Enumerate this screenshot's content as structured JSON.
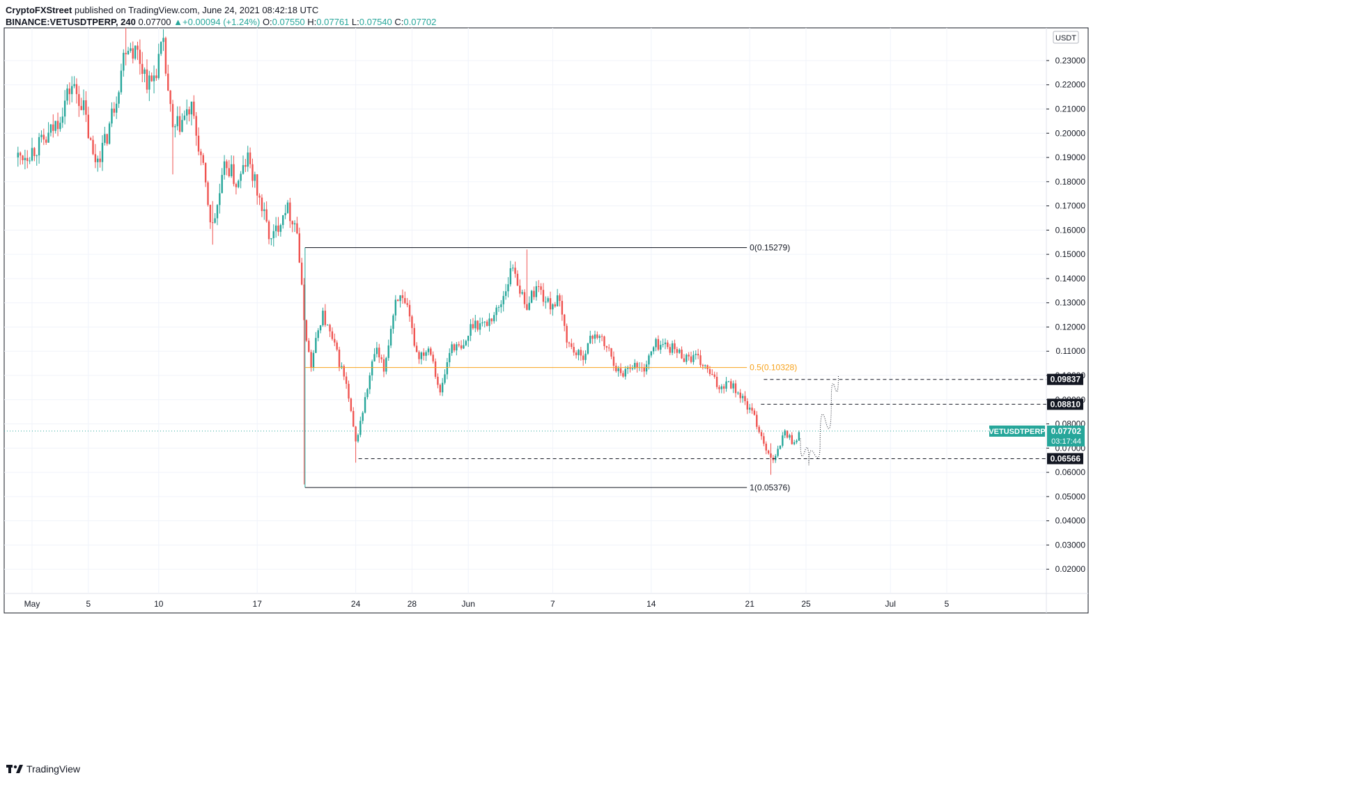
{
  "header": {
    "publisher": "CryptoFXStreet",
    "published_text": "published on TradingView.com, June 24, 2021 08:42:18 UTC",
    "symbol": "BINANCE:VETUSDTPERP, 240",
    "last": "0.07700",
    "arrow": "▲",
    "change": "+0.00094 (+1.24%)",
    "o_label": "O:",
    "o": "0.07550",
    "h_label": "H:",
    "h": "0.07761",
    "l_label": "L:",
    "l": "0.07540",
    "c_label": "C:",
    "c": "0.07702"
  },
  "footer": {
    "brand": "TradingView"
  },
  "colors": {
    "up": "#26a69a",
    "down": "#ef5350",
    "fib_mid": "#f7a21b",
    "grid": "#f0f3fa",
    "axis": "#131722"
  },
  "chart_data": {
    "type": "candlestick",
    "currency": "USDT",
    "ylim": [
      0.01,
      0.2435
    ],
    "y_ticks": [
      "0.23000",
      "0.22000",
      "0.21000",
      "0.20000",
      "0.19000",
      "0.18000",
      "0.17000",
      "0.16000",
      "0.15000",
      "0.14000",
      "0.13000",
      "0.12000",
      "0.11000",
      "0.10000",
      "0.09000",
      "0.08000",
      "0.07000",
      "0.06000",
      "0.05000",
      "0.04000",
      "0.03000",
      "0.02000"
    ],
    "x_ticks": [
      {
        "label": "May",
        "day": 1
      },
      {
        "label": "5",
        "day": 5
      },
      {
        "label": "10",
        "day": 10
      },
      {
        "label": "17",
        "day": 17
      },
      {
        "label": "24",
        "day": 24
      },
      {
        "label": "28",
        "day": 28
      },
      {
        "label": "Jun",
        "day": 32
      },
      {
        "label": "7",
        "day": 38
      },
      {
        "label": "14",
        "day": 45
      },
      {
        "label": "21",
        "day": 52
      },
      {
        "label": "25",
        "day": 56
      },
      {
        "label": "Jul",
        "day": 62
      },
      {
        "label": "5",
        "day": 66
      }
    ],
    "candle_day_range": [
      0,
      55.6
    ],
    "path": [
      [
        0,
        0.19
      ],
      [
        1,
        0.193
      ],
      [
        2,
        0.197
      ],
      [
        2.8,
        0.205
      ],
      [
        3.8,
        0.22
      ],
      [
        4.6,
        0.212
      ],
      [
        5.4,
        0.188
      ],
      [
        6.2,
        0.196
      ],
      [
        7,
        0.216
      ],
      [
        7.7,
        0.238
      ],
      [
        8.5,
        0.233
      ],
      [
        9.4,
        0.219
      ],
      [
        10.3,
        0.236
      ],
      [
        11,
        0.2
      ],
      [
        12.3,
        0.21
      ],
      [
        13,
        0.19
      ],
      [
        13.8,
        0.16
      ],
      [
        14.8,
        0.188
      ],
      [
        15.6,
        0.178
      ],
      [
        16.3,
        0.19
      ],
      [
        17.2,
        0.172
      ],
      [
        18,
        0.155
      ],
      [
        19,
        0.17
      ],
      [
        19.8,
        0.162
      ],
      [
        20.3,
        0.125
      ],
      [
        20.8,
        0.103
      ],
      [
        21.6,
        0.126
      ],
      [
        22.6,
        0.11
      ],
      [
        23.3,
        0.097
      ],
      [
        24,
        0.072
      ],
      [
        24.6,
        0.088
      ],
      [
        25.4,
        0.111
      ],
      [
        26,
        0.102
      ],
      [
        26.9,
        0.134
      ],
      [
        27.7,
        0.126
      ],
      [
        28.4,
        0.108
      ],
      [
        29.3,
        0.112
      ],
      [
        30,
        0.092
      ],
      [
        30.8,
        0.113
      ],
      [
        31.6,
        0.11
      ],
      [
        32.3,
        0.122
      ],
      [
        33.2,
        0.121
      ],
      [
        34.2,
        0.128
      ],
      [
        35.2,
        0.146
      ],
      [
        36,
        0.128
      ],
      [
        36.9,
        0.137
      ],
      [
        37.7,
        0.129
      ],
      [
        38.4,
        0.131
      ],
      [
        39.1,
        0.113
      ],
      [
        40,
        0.107
      ],
      [
        41,
        0.118
      ],
      [
        42,
        0.11
      ],
      [
        42.8,
        0.1
      ],
      [
        43.6,
        0.105
      ],
      [
        44.4,
        0.102
      ],
      [
        45.3,
        0.113
      ],
      [
        46.3,
        0.112
      ],
      [
        47.3,
        0.108
      ],
      [
        48.2,
        0.107
      ],
      [
        49,
        0.102
      ],
      [
        49.8,
        0.095
      ],
      [
        50.5,
        0.098
      ],
      [
        51.3,
        0.092
      ],
      [
        52.3,
        0.083
      ],
      [
        53.1,
        0.071
      ],
      [
        53.7,
        0.064
      ],
      [
        54.5,
        0.077
      ],
      [
        55.1,
        0.072
      ],
      [
        55.6,
        0.077
      ]
    ],
    "spikes": [
      {
        "day": 7.7,
        "high": 0.2435,
        "low": 0.228
      },
      {
        "day": 13.8,
        "high": 0.172,
        "low": 0.154
      },
      {
        "day": 20.4,
        "high": 0.125,
        "low": 0.055
      },
      {
        "day": 24,
        "high": 0.078,
        "low": 0.064
      },
      {
        "day": 36.1,
        "high": 0.152,
        "low": 0.138
      },
      {
        "day": 53.5,
        "high": 0.072,
        "low": 0.059
      },
      {
        "day": 11,
        "high": 0.208,
        "low": 0.183
      }
    ],
    "fib": {
      "start_day": 20.4,
      "end_day": 51.8,
      "levels": [
        {
          "label": "0(0.15279)",
          "value": 0.15279,
          "color": "#131722"
        },
        {
          "label": "0.5(0.10328)",
          "value": 0.10328,
          "color": "#f7a21b"
        },
        {
          "label": "1(0.05376)",
          "value": 0.05376,
          "color": "#131722"
        }
      ]
    },
    "horizontal_levels": [
      {
        "label": "0.09837",
        "value": 0.09837,
        "start_day": 53.0
      },
      {
        "label": "0.08810",
        "value": 0.0881,
        "start_day": 52.8
      },
      {
        "label": "0.06566",
        "value": 0.06566,
        "start_day": 24.2
      }
    ],
    "projection": [
      [
        55.6,
        0.074
      ],
      [
        56.2,
        0.063
      ],
      [
        57.0,
        0.072
      ],
      [
        57.8,
        0.09
      ],
      [
        58.3,
        0.1
      ]
    ],
    "last_price": {
      "symbol": "VETUSDTPERP",
      "value": "0.07702",
      "countdown": "03:17:44",
      "y": 0.07702
    }
  }
}
